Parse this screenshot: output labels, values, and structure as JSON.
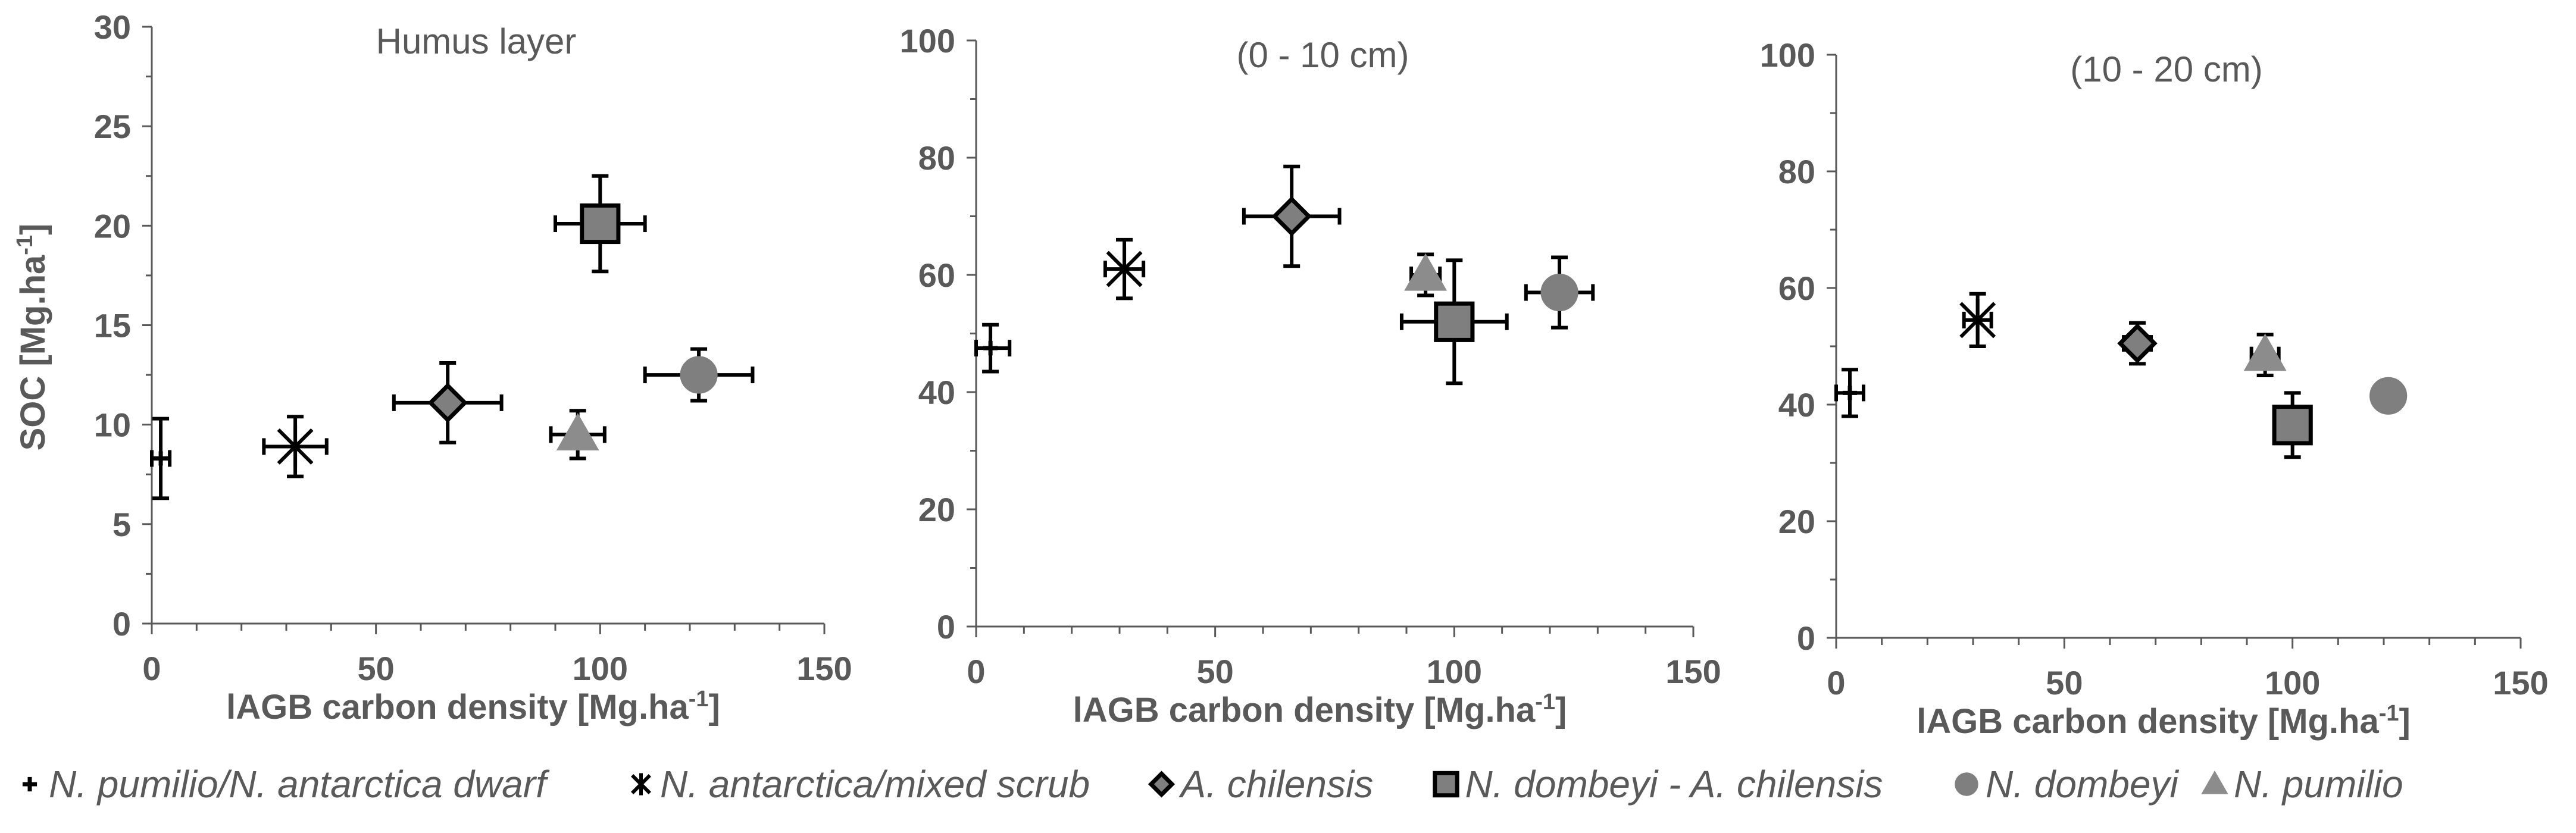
{
  "chart_data": [
    {
      "type": "scatter",
      "title": "Humus layer",
      "xlabel": "lAGB carbon density [Mg.ha",
      "xlabel_sup": "-1",
      "xlabel_end": "]",
      "ylabel": "SOC [Mg.ha",
      "ylabel_sup": "-1",
      "ylabel_end": "]",
      "xlim": [
        0,
        150
      ],
      "ylim": [
        0,
        30
      ],
      "xticks": [
        "0",
        "50",
        "100",
        "150"
      ],
      "yticks": [
        "0",
        "5",
        "10",
        "15",
        "20",
        "25",
        "30"
      ],
      "grid": false,
      "points": [
        {
          "series": "N. pumilio/N. antarctica dwarf",
          "x": 2,
          "y": 8.3,
          "xerr": 2,
          "yerr": 2
        },
        {
          "series": "N. antarctica/mixed scrub",
          "x": 32,
          "y": 8.9,
          "xerr": 7,
          "yerr": 1.5
        },
        {
          "series": "A. chilensis",
          "x": 66,
          "y": 11.1,
          "xerr": 12,
          "yerr": 2
        },
        {
          "series": "N. dombeyi - A. chilensis",
          "x": 100,
          "y": 20.1,
          "xerr": 10,
          "yerr": 2.4
        },
        {
          "series": "N. dombeyi",
          "x": 122,
          "y": 12.5,
          "xerr": 12,
          "yerr": 1.3
        },
        {
          "series": "N. pumilio",
          "x": 95,
          "y": 9.5,
          "xerr": 6,
          "yerr": 1.2
        }
      ]
    },
    {
      "type": "scatter",
      "title": "(0 - 10 cm)",
      "xlabel": "lAGB carbon density [Mg.ha",
      "xlabel_sup": "-1",
      "xlabel_end": "]",
      "ylabel": "",
      "xlim": [
        0,
        150
      ],
      "ylim": [
        0,
        100
      ],
      "xticks": [
        "0",
        "50",
        "100",
        "150"
      ],
      "yticks": [
        "0",
        "20",
        "40",
        "60",
        "80",
        "100"
      ],
      "grid": false,
      "points": [
        {
          "series": "N. pumilio/N. antarctica dwarf",
          "x": 3,
          "y": 47.5,
          "xerr": 4,
          "yerr": 4
        },
        {
          "series": "N. antarctica/mixed scrub",
          "x": 31,
          "y": 61,
          "xerr": 4,
          "yerr": 5
        },
        {
          "series": "A. chilensis",
          "x": 66,
          "y": 70,
          "xerr": 10,
          "yerr": 8.5
        },
        {
          "series": "N. dombeyi - A. chilensis",
          "x": 100,
          "y": 52,
          "xerr": 11,
          "yerr": 10.5
        },
        {
          "series": "N. dombeyi",
          "x": 122,
          "y": 57,
          "xerr": 7,
          "yerr": 6
        },
        {
          "series": "N. pumilio",
          "x": 94,
          "y": 60,
          "xerr": 3,
          "yerr": 3.5
        }
      ]
    },
    {
      "type": "scatter",
      "title": "(10 - 20 cm)",
      "xlabel": "lAGB carbon density [Mg.ha",
      "xlabel_sup": "-1",
      "xlabel_end": "]",
      "ylabel": "",
      "xlim": [
        0,
        150
      ],
      "ylim": [
        0,
        100
      ],
      "xticks": [
        "0",
        "50",
        "100",
        "150"
      ],
      "yticks": [
        "0",
        "20",
        "40",
        "60",
        "80",
        "100"
      ],
      "grid": false,
      "points": [
        {
          "series": "N. pumilio/N. antarctica dwarf",
          "x": 3,
          "y": 42,
          "xerr": 3,
          "yerr": 4
        },
        {
          "series": "N. antarctica/mixed scrub",
          "x": 31,
          "y": 54.5,
          "xerr": 3,
          "yerr": 4.5
        },
        {
          "series": "A. chilensis",
          "x": 66,
          "y": 50.5,
          "xerr": 3,
          "yerr": 3.5
        },
        {
          "series": "N. dombeyi - A. chilensis",
          "x": 100,
          "y": 36.5,
          "xerr": 4,
          "yerr": 5.5
        },
        {
          "series": "N. dombeyi",
          "x": 121,
          "y": 41.5,
          "xerr": 1,
          "yerr": 1
        },
        {
          "series": "N. pumilio",
          "x": 94,
          "y": 48.5,
          "xerr": 3,
          "yerr": 3.5
        }
      ]
    }
  ],
  "legend": {
    "placement": "bottom",
    "items": [
      {
        "label": "N. pumilio/N. antarctica dwarf",
        "marker": "plus-marker"
      },
      {
        "label": "N. antarctica/mixed scrub",
        "marker": "asterisk-marker"
      },
      {
        "label": "A. chilensis",
        "marker": "diamond-marker"
      },
      {
        "label": "N. dombeyi - A. chilensis",
        "marker": "square-marker"
      },
      {
        "label": "N. dombeyi",
        "marker": "circle-marker"
      },
      {
        "label": "N. pumilio",
        "marker": "triangle-marker"
      }
    ]
  },
  "colors": {
    "marker_fill": "#7f7f7f",
    "marker_edge": "#000000",
    "triangle_fill": "#8c8c8c",
    "axis": "#595959",
    "text": "#595959"
  }
}
